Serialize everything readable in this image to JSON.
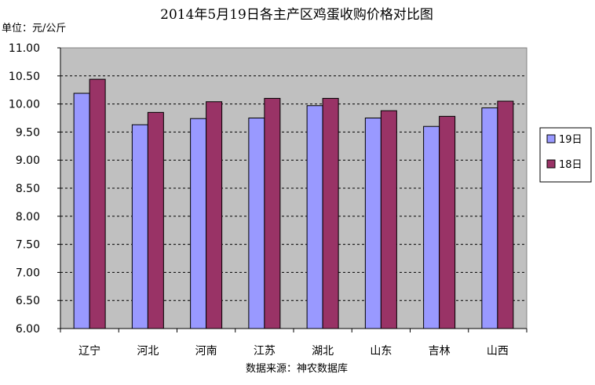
{
  "chart_data": {
    "type": "bar",
    "title": "2014年5月19日各主产区鸡蛋收购价格对比图",
    "ylabel": "单位：元/公斤",
    "xlabel": "数据来源：神农数据库",
    "categories": [
      "辽宁",
      "河北",
      "河南",
      "江苏",
      "湖北",
      "山东",
      "吉林",
      "山西"
    ],
    "series": [
      {
        "name": "19日",
        "values": [
          10.19,
          9.63,
          9.74,
          9.75,
          9.97,
          9.75,
          9.6,
          9.93
        ],
        "color": "#9999ff"
      },
      {
        "name": "18日",
        "values": [
          10.44,
          9.85,
          10.04,
          10.1,
          10.1,
          9.88,
          9.78,
          10.05
        ],
        "color": "#993366"
      }
    ],
    "ylim": [
      6.0,
      11.0
    ],
    "yticks": [
      "6.00",
      "6.50",
      "7.00",
      "7.50",
      "8.00",
      "8.50",
      "9.00",
      "9.50",
      "10.00",
      "10.50",
      "11.00"
    ],
    "grid": true,
    "plot_background": "#c0c0c0",
    "legend_position": "right"
  }
}
